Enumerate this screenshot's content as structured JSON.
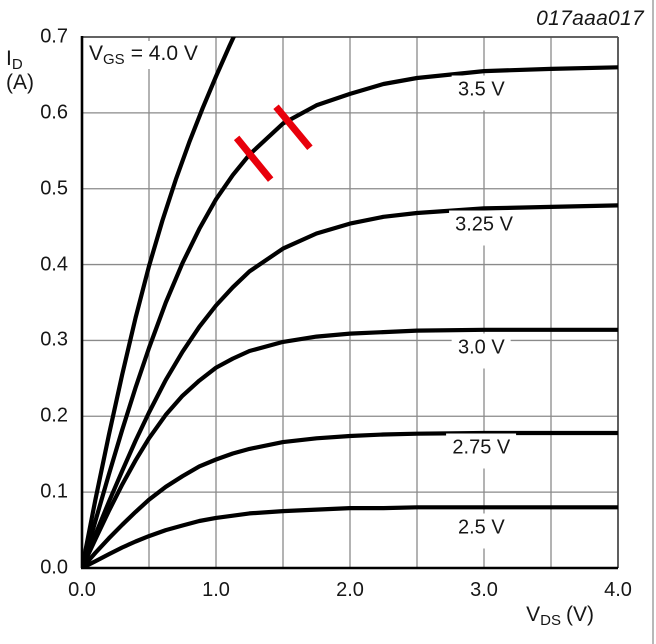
{
  "figure_id": "017aaa017",
  "colors": {
    "curve": "#000000",
    "grid": "#8a8a8a",
    "frame": "#4d4d4d",
    "axis": "#000000",
    "annotation": "#e8000b",
    "text": "#161616"
  },
  "y_axis": {
    "title_main": "I",
    "title_sub": "D",
    "title_unit": "(A)",
    "tick_labels": [
      "0.7",
      "0.6",
      "0.5",
      "0.4",
      "0.3",
      "0.2",
      "0.1",
      "0.0"
    ]
  },
  "x_axis": {
    "title_main": "V",
    "title_sub": "DS",
    "title_unit": "(V)",
    "tick_labels": [
      "0.0",
      "1.0",
      "2.0",
      "3.0",
      "4.0"
    ]
  },
  "inplot_label": {
    "main": "V",
    "sub": "GS",
    "rest": "= 4.0 V"
  },
  "chart_data": {
    "type": "line",
    "title": "MOSFET output characteristics: drain current vs drain-source voltage for several gate-source voltages",
    "xlabel": "VDS (V)",
    "ylabel": "ID (A)",
    "xlim": [
      0,
      4
    ],
    "ylim": [
      0,
      0.7
    ],
    "x_gridstep": 0.5,
    "y_gridstep": 0.1,
    "grid": true,
    "legend_position": "labels-on-curves",
    "series": [
      {
        "name": "VGS = 4.0 V",
        "points": [
          [
            0,
            0
          ],
          [
            0.1,
            0.09
          ],
          [
            0.2,
            0.175
          ],
          [
            0.3,
            0.255
          ],
          [
            0.4,
            0.33
          ],
          [
            0.5,
            0.398
          ],
          [
            0.6,
            0.458
          ],
          [
            0.7,
            0.512
          ],
          [
            0.8,
            0.561
          ],
          [
            0.9,
            0.606
          ],
          [
            1.0,
            0.648
          ],
          [
            1.1,
            0.688
          ],
          [
            1.2,
            0.726
          ]
        ]
      },
      {
        "name": "VGS = 3.5 V",
        "label": "3.5 V",
        "label_anchor": [
          2.98,
          0.626
        ],
        "points": [
          [
            0,
            0
          ],
          [
            0.1,
            0.062
          ],
          [
            0.2,
            0.123
          ],
          [
            0.3,
            0.182
          ],
          [
            0.4,
            0.238
          ],
          [
            0.5,
            0.29
          ],
          [
            0.625,
            0.35
          ],
          [
            0.75,
            0.402
          ],
          [
            0.875,
            0.447
          ],
          [
            1.0,
            0.486
          ],
          [
            1.125,
            0.518
          ],
          [
            1.25,
            0.545
          ],
          [
            1.5,
            0.586
          ],
          [
            1.75,
            0.61
          ],
          [
            2.0,
            0.625
          ],
          [
            2.25,
            0.638
          ],
          [
            2.5,
            0.646
          ],
          [
            3.0,
            0.655
          ],
          [
            3.5,
            0.658
          ],
          [
            4.0,
            0.66
          ]
        ]
      },
      {
        "name": "VGS = 3.25 V",
        "label": "3.25 V",
        "label_anchor": [
          3.0,
          0.448
        ],
        "points": [
          [
            0,
            0
          ],
          [
            0.1,
            0.044
          ],
          [
            0.2,
            0.087
          ],
          [
            0.3,
            0.128
          ],
          [
            0.4,
            0.168
          ],
          [
            0.5,
            0.205
          ],
          [
            0.625,
            0.248
          ],
          [
            0.75,
            0.285
          ],
          [
            0.875,
            0.318
          ],
          [
            1.0,
            0.346
          ],
          [
            1.125,
            0.37
          ],
          [
            1.25,
            0.391
          ],
          [
            1.5,
            0.421
          ],
          [
            1.75,
            0.441
          ],
          [
            2.0,
            0.454
          ],
          [
            2.25,
            0.463
          ],
          [
            2.5,
            0.468
          ],
          [
            3.0,
            0.474
          ],
          [
            3.5,
            0.476
          ],
          [
            4.0,
            0.478
          ]
        ]
      },
      {
        "name": "VGS = 3.0 V",
        "label": "3.0 V",
        "label_anchor": [
          2.98,
          0.286
        ],
        "points": [
          [
            0,
            0
          ],
          [
            0.1,
            0.038
          ],
          [
            0.2,
            0.075
          ],
          [
            0.3,
            0.11
          ],
          [
            0.4,
            0.142
          ],
          [
            0.5,
            0.171
          ],
          [
            0.625,
            0.202
          ],
          [
            0.75,
            0.227
          ],
          [
            0.875,
            0.247
          ],
          [
            1.0,
            0.264
          ],
          [
            1.125,
            0.276
          ],
          [
            1.25,
            0.286
          ],
          [
            1.5,
            0.298
          ],
          [
            1.75,
            0.305
          ],
          [
            2.0,
            0.309
          ],
          [
            2.25,
            0.311
          ],
          [
            2.5,
            0.313
          ],
          [
            3.0,
            0.314
          ],
          [
            3.5,
            0.314
          ],
          [
            4.0,
            0.314
          ]
        ]
      },
      {
        "name": "VGS = 2.75 V",
        "label": "2.75 V",
        "label_anchor": [
          2.98,
          0.154
        ],
        "points": [
          [
            0,
            0
          ],
          [
            0.1,
            0.02
          ],
          [
            0.2,
            0.039
          ],
          [
            0.3,
            0.057
          ],
          [
            0.4,
            0.074
          ],
          [
            0.5,
            0.09
          ],
          [
            0.625,
            0.107
          ],
          [
            0.75,
            0.121
          ],
          [
            0.875,
            0.134
          ],
          [
            1.0,
            0.143
          ],
          [
            1.125,
            0.151
          ],
          [
            1.25,
            0.157
          ],
          [
            1.5,
            0.166
          ],
          [
            1.75,
            0.171
          ],
          [
            2.0,
            0.174
          ],
          [
            2.25,
            0.176
          ],
          [
            2.5,
            0.177
          ],
          [
            3.0,
            0.178
          ],
          [
            3.5,
            0.178
          ],
          [
            4.0,
            0.178
          ]
        ]
      },
      {
        "name": "VGS = 2.5 V",
        "label": "2.5 V",
        "label_anchor": [
          2.98,
          0.049
        ],
        "points": [
          [
            0,
            0
          ],
          [
            0.1,
            0.009
          ],
          [
            0.2,
            0.018
          ],
          [
            0.3,
            0.027
          ],
          [
            0.4,
            0.035
          ],
          [
            0.5,
            0.042
          ],
          [
            0.625,
            0.05
          ],
          [
            0.75,
            0.056
          ],
          [
            0.875,
            0.062
          ],
          [
            1.0,
            0.066
          ],
          [
            1.125,
            0.069
          ],
          [
            1.25,
            0.072
          ],
          [
            1.5,
            0.075
          ],
          [
            1.75,
            0.077
          ],
          [
            2.0,
            0.079
          ],
          [
            2.25,
            0.079
          ],
          [
            2.5,
            0.08
          ],
          [
            3.0,
            0.08
          ],
          [
            3.5,
            0.08
          ],
          [
            4.0,
            0.08
          ]
        ]
      }
    ],
    "annotations": [
      {
        "type": "slash",
        "x1": 1.154,
        "y1": 0.567,
        "x2": 1.408,
        "y2": 0.512
      },
      {
        "type": "slash",
        "x1": 1.448,
        "y1": 0.608,
        "x2": 1.701,
        "y2": 0.554
      }
    ]
  }
}
